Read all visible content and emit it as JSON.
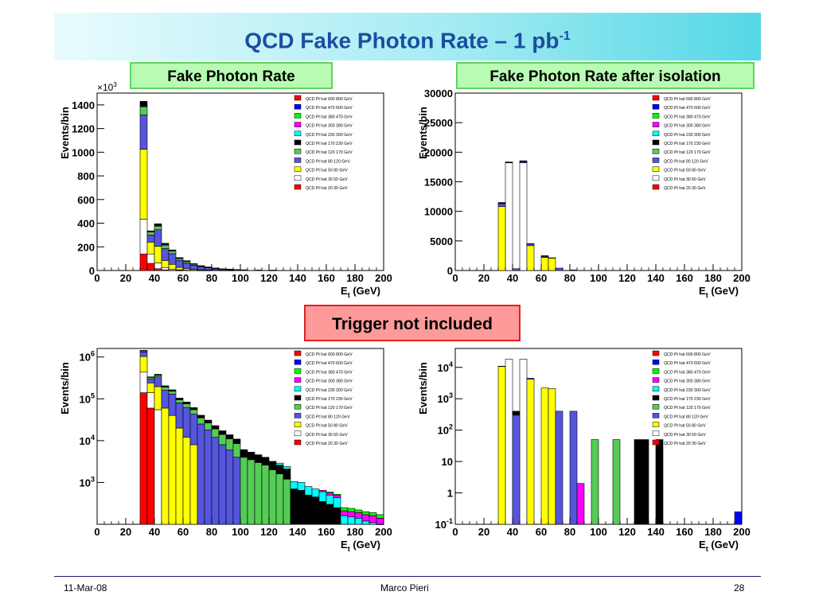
{
  "slide": {
    "title_main": "QCD Fake Photon Rate – 1 pb",
    "title_sup": "-1",
    "label_left": "Fake Photon Rate",
    "label_right": "Fake Photon Rate after isolation",
    "label_trigger": "Trigger not included",
    "footer_date": "11-Mar-08",
    "footer_author": "Marco Pieri",
    "footer_page": "28"
  },
  "legend_entries": [
    {
      "name": "QCD Pt hat 600 800 GeV",
      "color": "#ff0000"
    },
    {
      "name": "QCD Pt hat 470 600 GeV",
      "color": "#0000ff"
    },
    {
      "name": "QCD Pt hat 380 470 GeV",
      "color": "#00ff00"
    },
    {
      "name": "QCD Pt hat 300 380 GeV",
      "color": "#ff00ff"
    },
    {
      "name": "QCD Pt hat 230 300 GeV",
      "color": "#00ffff"
    },
    {
      "name": "QCD Pt hat 170 230 GeV",
      "color": "#000000"
    },
    {
      "name": "QCD Pt hat 120 170 GeV",
      "color": "#55cc55"
    },
    {
      "name": "QCD Pt hat 80 120 GeV",
      "color": "#5555dd"
    },
    {
      "name": "QCD Pt hat 50 80 GeV",
      "color": "#ffff00"
    },
    {
      "name": "QCD Pt hat 30 50 GeV",
      "color": "#ffffff"
    },
    {
      "name": "QCD Pt hat 20 30 GeV",
      "color": "#ff0000"
    }
  ],
  "chart_data": [
    {
      "type": "bar",
      "title": "Fake Photon Rate",
      "xlabel": "E_t (GeV)",
      "ylabel": "Events/bin",
      "xlim": [
        0,
        200
      ],
      "ylim": [
        0,
        1500
      ],
      "yscale": "linear",
      "multiplier": "×10^3",
      "xticks": [
        "0",
        "20",
        "40",
        "60",
        "80",
        "100",
        "120",
        "140",
        "160",
        "180",
        "200"
      ],
      "yticks": [
        "0",
        "200",
        "400",
        "600",
        "800",
        "1000",
        "1200",
        "1400"
      ],
      "bin_width": 5,
      "bin_starts": [
        30,
        35,
        40,
        45,
        50,
        55,
        60,
        65,
        70,
        75,
        80,
        85,
        90,
        95,
        100,
        110,
        120
      ],
      "series": [
        {
          "name": "QCD Pt hat 20 30 GeV",
          "values": [
            140,
            60,
            15,
            5,
            2,
            1,
            0,
            0,
            0,
            0,
            0,
            0,
            0,
            0,
            0,
            0,
            0
          ]
        },
        {
          "name": "QCD Pt hat 30 50 GeV",
          "values": [
            295,
            80,
            50,
            20,
            10,
            5,
            3,
            2,
            1,
            1,
            0,
            0,
            0,
            0,
            0,
            0,
            0
          ]
        },
        {
          "name": "QCD Pt hat 50 80 GeV",
          "values": [
            590,
            100,
            140,
            60,
            40,
            20,
            12,
            8,
            5,
            3,
            2,
            1,
            1,
            0,
            0,
            0,
            0
          ]
        },
        {
          "name": "QCD Pt hat 80 120 GeV",
          "values": [
            290,
            60,
            140,
            100,
            90,
            60,
            50,
            35,
            25,
            18,
            12,
            8,
            6,
            4,
            3,
            2,
            1
          ]
        },
        {
          "name": "QCD Pt hat 120 170 GeV",
          "values": [
            70,
            25,
            30,
            30,
            22,
            15,
            12,
            8,
            6,
            5,
            4,
            3,
            2,
            2,
            2,
            1,
            1
          ]
        },
        {
          "name": "QCD Pt hat 170 230 GeV",
          "values": [
            45,
            10,
            20,
            15,
            10,
            8,
            6,
            5,
            4,
            3,
            3,
            2,
            2,
            2,
            1,
            1,
            1
          ]
        }
      ],
      "legend_loc": "top-right",
      "grid": false
    },
    {
      "type": "bar",
      "title": "Fake Photon Rate after isolation",
      "xlabel": "E_t (GeV)",
      "ylabel": "Events/bin",
      "xlim": [
        0,
        200
      ],
      "ylim": [
        0,
        30000
      ],
      "yscale": "linear",
      "xticks": [
        "0",
        "20",
        "40",
        "60",
        "80",
        "100",
        "120",
        "140",
        "160",
        "180",
        "200"
      ],
      "yticks": [
        "0",
        "5000",
        "10000",
        "15000",
        "20000",
        "25000",
        "30000"
      ],
      "bin_width": 5,
      "bin_starts": [
        30,
        35,
        40,
        45,
        50,
        55,
        60,
        65,
        70,
        75,
        80
      ],
      "series": [
        {
          "name": "QCD Pt hat 30 50 GeV",
          "values": [
            0,
            18200,
            0,
            18200,
            0,
            0,
            0,
            0,
            0,
            0,
            0
          ]
        },
        {
          "name": "QCD Pt hat 50 80 GeV",
          "values": [
            10800,
            0,
            0,
            0,
            4200,
            0,
            2200,
            2100,
            0,
            0,
            0
          ]
        },
        {
          "name": "QCD Pt hat 80 120 GeV",
          "values": [
            500,
            0,
            300,
            200,
            300,
            0,
            200,
            0,
            400,
            0,
            100
          ]
        },
        {
          "name": "QCD Pt hat 120 170 GeV",
          "values": [
            100,
            0,
            0,
            0,
            0,
            0,
            50,
            0,
            0,
            0,
            0
          ]
        },
        {
          "name": "QCD Pt hat 170 230 GeV",
          "values": [
            100,
            150,
            0,
            150,
            50,
            0,
            50,
            50,
            0,
            0,
            0
          ]
        }
      ],
      "legend_loc": "top-right",
      "grid": false
    },
    {
      "type": "bar",
      "title": "",
      "xlabel": "E_t (GeV)",
      "ylabel": "Events/bin",
      "xlim": [
        0,
        200
      ],
      "ylim": [
        100,
        1600000
      ],
      "yscale": "log",
      "xticks": [
        "0",
        "20",
        "40",
        "60",
        "80",
        "100",
        "120",
        "140",
        "160",
        "180",
        "200"
      ],
      "yticks": [
        "10^3",
        "10^4",
        "10^5",
        "10^6"
      ],
      "bin_width": 5,
      "bin_starts": [
        30,
        35,
        40,
        45,
        50,
        55,
        60,
        65,
        70,
        75,
        80,
        85,
        90,
        95,
        100,
        105,
        110,
        115,
        120,
        125,
        130,
        135,
        140,
        145,
        150,
        155,
        160,
        165,
        170,
        175,
        180,
        185,
        190,
        195
      ],
      "series": [
        {
          "name": "QCD Pt hat 20 30 GeV",
          "values": [
            140000,
            60000,
            0,
            0,
            0,
            0,
            0,
            0,
            0,
            0,
            0,
            0,
            0,
            0,
            0,
            0,
            0,
            0,
            0,
            0,
            0,
            0,
            0,
            0,
            0,
            0,
            0,
            0,
            0,
            0,
            0,
            0,
            0,
            0
          ]
        },
        {
          "name": "QCD Pt hat 30 50 GeV",
          "values": [
            295000,
            80000,
            55000,
            0,
            0,
            0,
            0,
            0,
            0,
            0,
            0,
            0,
            0,
            0,
            0,
            0,
            0,
            0,
            0,
            0,
            0,
            0,
            0,
            0,
            0,
            0,
            0,
            0,
            0,
            0,
            0,
            0,
            0,
            0
          ]
        },
        {
          "name": "QCD Pt hat 50 80 GeV",
          "values": [
            590000,
            100000,
            140000,
            60000,
            40000,
            20000,
            12000,
            8000,
            0,
            0,
            0,
            0,
            0,
            0,
            0,
            0,
            0,
            0,
            0,
            0,
            0,
            0,
            0,
            0,
            0,
            0,
            0,
            0,
            0,
            0,
            0,
            0,
            0,
            0
          ]
        },
        {
          "name": "QCD Pt hat 80 120 GeV",
          "values": [
            300000,
            60000,
            140000,
            100000,
            90000,
            60000,
            50000,
            35000,
            25000,
            18000,
            12000,
            8000,
            6000,
            4000,
            0,
            0,
            0,
            0,
            0,
            0,
            0,
            0,
            0,
            0,
            0,
            0,
            0,
            0,
            0,
            0,
            0,
            0,
            0,
            0
          ]
        },
        {
          "name": "QCD Pt hat 120 170 GeV",
          "values": [
            70000,
            25000,
            30000,
            30000,
            22000,
            15000,
            14000,
            12000,
            10000,
            8500,
            7000,
            6000,
            5000,
            4500,
            4000,
            3500,
            3000,
            2600,
            2000,
            1600,
            1200,
            0,
            0,
            0,
            0,
            0,
            0,
            0,
            0,
            0,
            0,
            0,
            0,
            0
          ]
        },
        {
          "name": "QCD Pt hat 170 230 GeV",
          "values": [
            45000,
            10000,
            20000,
            15000,
            12000,
            9000,
            8000,
            6500,
            5500,
            4500,
            3800,
            3200,
            2800,
            2400,
            2100,
            1800,
            1600,
            1400,
            1200,
            1000,
            900,
            700,
            650,
            500,
            450,
            350,
            300,
            250,
            0,
            0,
            0,
            0,
            0,
            0
          ]
        },
        {
          "name": "QCD Pt hat 230 300 GeV",
          "values": [
            0,
            0,
            0,
            0,
            0,
            0,
            0,
            0,
            0,
            0,
            0,
            0,
            0,
            0,
            0,
            0,
            0,
            0,
            0,
            300,
            300,
            350,
            350,
            300,
            250,
            250,
            200,
            180,
            160,
            150,
            140,
            120,
            110,
            100
          ]
        },
        {
          "name": "QCD Pt hat 300 380 GeV",
          "values": [
            0,
            0,
            0,
            0,
            0,
            0,
            0,
            0,
            0,
            0,
            0,
            0,
            0,
            0,
            0,
            0,
            0,
            0,
            0,
            0,
            0,
            0,
            0,
            0,
            0,
            50,
            60,
            60,
            50,
            50,
            50,
            50,
            50,
            40
          ]
        },
        {
          "name": "QCD Pt hat 380 470 GeV",
          "values": [
            0,
            0,
            0,
            0,
            0,
            0,
            0,
            0,
            0,
            0,
            0,
            0,
            0,
            0,
            0,
            0,
            0,
            0,
            0,
            0,
            0,
            0,
            0,
            0,
            0,
            0,
            30,
            30,
            40,
            40,
            30,
            30,
            30,
            30
          ]
        }
      ],
      "legend_loc": "top-right",
      "grid": false
    },
    {
      "type": "bar",
      "title": "",
      "xlabel": "E_t (GeV)",
      "ylabel": "Events/bin",
      "xlim": [
        0,
        200
      ],
      "ylim": [
        0.1,
        40000
      ],
      "yscale": "log",
      "xticks": [
        "0",
        "20",
        "40",
        "60",
        "80",
        "100",
        "120",
        "140",
        "160",
        "180",
        "200"
      ],
      "yticks": [
        "10^-1",
        "1",
        "10",
        "10^2",
        "10^3",
        "10^4"
      ],
      "bin_width": 5,
      "bin_starts": [
        30,
        35,
        40,
        45,
        50,
        55,
        60,
        65,
        70,
        75,
        80,
        85,
        90,
        95,
        100,
        105,
        110,
        115,
        120,
        125,
        130,
        135,
        140,
        145,
        150,
        155,
        160,
        165,
        170,
        175,
        180,
        185,
        190,
        195
      ],
      "series": [
        {
          "name": "QCD Pt hat 30 50 GeV",
          "values": [
            0,
            18200,
            0,
            18200,
            0,
            0,
            0,
            0,
            0,
            0,
            0,
            0,
            0,
            0,
            0,
            0,
            0,
            0,
            0,
            0,
            0,
            0,
            0,
            0,
            0,
            0,
            0,
            0,
            0,
            0,
            0,
            0,
            0,
            0
          ]
        },
        {
          "name": "QCD Pt hat 50 80 GeV",
          "values": [
            10800,
            0,
            0,
            0,
            4200,
            0,
            2200,
            2100,
            0,
            0,
            0,
            0,
            0,
            0,
            0,
            0,
            0,
            0,
            0,
            0,
            0,
            0,
            0,
            0,
            0,
            0,
            0,
            0,
            0,
            0,
            0,
            0,
            0,
            0
          ]
        },
        {
          "name": "QCD Pt hat 80 120 GeV",
          "values": [
            0,
            0,
            300,
            0,
            300,
            0,
            0,
            0,
            400,
            0,
            400,
            0,
            0,
            0,
            0,
            0,
            0,
            0,
            0,
            0,
            0,
            0,
            0,
            0,
            0,
            0,
            0,
            0,
            0,
            0,
            0,
            0,
            0,
            0
          ]
        },
        {
          "name": "QCD Pt hat 300 380 GeV",
          "values": [
            0,
            0,
            0,
            0,
            0,
            0,
            0,
            0,
            0,
            0,
            0,
            2,
            0,
            0,
            0,
            0,
            0,
            0,
            0,
            0,
            0,
            0,
            0,
            0,
            0,
            0,
            0,
            0,
            0,
            0,
            0,
            0,
            0,
            0
          ]
        },
        {
          "name": "QCD Pt hat 120 170 GeV",
          "values": [
            0,
            0,
            0,
            0,
            0,
            0,
            0,
            0,
            0,
            0,
            0,
            0,
            0,
            50,
            0,
            0,
            50,
            0,
            0,
            0,
            0,
            0,
            0,
            0,
            0,
            0,
            0,
            0,
            0,
            0,
            0,
            0,
            0,
            0
          ]
        },
        {
          "name": "QCD Pt hat 170 230 GeV",
          "values": [
            100,
            0,
            100,
            0,
            0,
            0,
            0,
            0,
            0,
            0,
            0,
            0,
            0,
            0,
            0,
            0,
            0,
            0,
            0,
            50,
            50,
            0,
            50,
            0,
            0,
            0,
            0,
            0,
            0,
            0,
            0,
            0,
            0,
            0
          ]
        },
        {
          "name": "QCD Pt hat 470 600 GeV",
          "values": [
            0,
            0,
            0,
            0,
            0,
            0,
            0,
            0,
            0,
            0,
            0,
            0,
            0,
            0,
            0,
            0,
            0,
            0,
            0,
            0,
            0,
            0,
            0,
            0,
            0,
            0,
            0,
            0,
            0,
            0,
            0,
            0,
            0,
            0.25
          ]
        }
      ],
      "legend_loc": "top-right",
      "grid": false
    }
  ]
}
